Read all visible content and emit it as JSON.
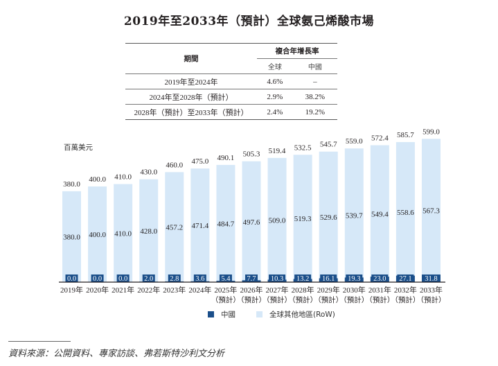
{
  "title": "2019年至2033年（預計）全球氨己烯酸市場",
  "cagr_table": {
    "period_header": "期間",
    "cagr_header": "複合年增長率",
    "sub_headers": [
      "全球",
      "中國"
    ],
    "rows": [
      {
        "period": "2019年至2024年",
        "global": "4.6%",
        "china": "–"
      },
      {
        "period": "2024年至2028年（預計）",
        "global": "2.9%",
        "china": "38.2%"
      },
      {
        "period": "2028年（預計）至2033年（預計）",
        "global": "2.4%",
        "china": "19.2%"
      }
    ]
  },
  "colors": {
    "china": "#1b4f8a",
    "row": "#d6e8f8",
    "axis": "#231f20"
  },
  "source": "資料來源：公開資料、專家訪談、弗若斯特沙利文分析",
  "chart_data": {
    "type": "bar",
    "stacked": true,
    "title": "2019年至2033年（預計）全球氨己烯酸市場",
    "ylabel": "百萬美元",
    "xlabel": "",
    "categories": [
      "2019年",
      "2020年",
      "2021年",
      "2022年",
      "2023年",
      "2024年",
      "2025年",
      "2026年",
      "2027年",
      "2028年",
      "2029年",
      "2030年",
      "2031年",
      "2032年",
      "2033年"
    ],
    "category_sublabels": [
      "",
      "",
      "",
      "",
      "",
      "",
      "（預計）",
      "（預計）",
      "（預計）",
      "（預計）",
      "（預計）",
      "（預計）",
      "（預計）",
      "（預計）",
      "（預計）"
    ],
    "series": [
      {
        "name": "中國",
        "color": "#1b4f8a",
        "values": [
          0.0,
          0.0,
          0.0,
          2.0,
          2.8,
          3.6,
          5.4,
          7.7,
          10.3,
          13.2,
          16.1,
          19.3,
          23.0,
          27.1,
          31.8
        ],
        "labels": [
          "0.0",
          "0.0",
          "0.0",
          "2.0",
          "2.8",
          "3.6",
          "5.4",
          "7.7",
          "10.3",
          "13.2",
          "16.1",
          "19.3",
          "23.0",
          "27.1",
          "31.8"
        ]
      },
      {
        "name": "全球其他地區(RoW)",
        "color": "#d6e8f8",
        "values": [
          380.0,
          400.0,
          410.0,
          428.0,
          457.2,
          471.4,
          484.7,
          497.6,
          509.0,
          519.3,
          529.6,
          539.7,
          549.4,
          558.6,
          567.3
        ],
        "labels": [
          "380.0",
          "400.0",
          "410.0",
          "428.0",
          "457.2",
          "471.4",
          "484.7",
          "497.6",
          "509.0",
          "519.3",
          "529.6",
          "539.7",
          "549.4",
          "558.6",
          "567.3"
        ]
      }
    ],
    "totals": [
      380.0,
      400.0,
      410.0,
      430.0,
      460.0,
      475.0,
      490.1,
      505.3,
      519.4,
      532.5,
      545.7,
      559.0,
      572.4,
      585.7,
      599.0
    ],
    "total_labels": [
      "380.0",
      "400.0",
      "410.0",
      "430.0",
      "460.0",
      "475.0",
      "490.1",
      "505.3",
      "519.4",
      "532.5",
      "545.7",
      "559.0",
      "572.4",
      "585.7",
      "599.0"
    ],
    "ylim": [
      0,
      600
    ],
    "grid": false,
    "legend": "bottom-center"
  }
}
